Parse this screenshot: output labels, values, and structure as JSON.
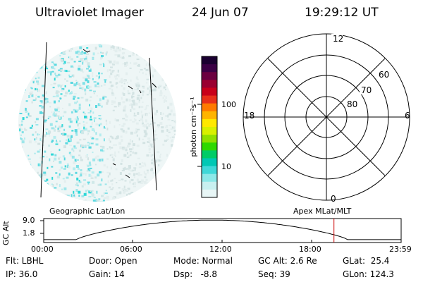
{
  "header": {
    "instrument": "Ultraviolet Imager",
    "date": "24 Jun 07",
    "time": "19:29:12 UT"
  },
  "colorbar": {
    "unit_label": "photon cm⁻²s⁻¹",
    "tick_labels": [
      "100",
      "10"
    ],
    "colors": [
      "#1a0030",
      "#3b0045",
      "#6b0040",
      "#9a0030",
      "#c8001a",
      "#e8301a",
      "#ff7a00",
      "#ffb400",
      "#ffe800",
      "#d8f000",
      "#90e000",
      "#2ed800",
      "#00cc66",
      "#00c8b4",
      "#3fd8d8",
      "#8ce8e8",
      "#c8f0f0",
      "#e8f6f6"
    ]
  },
  "polar": {
    "mlt_labels": {
      "top": "12",
      "left": "18",
      "right": "6",
      "bottom": "0"
    },
    "lat_labels": [
      "60",
      "70",
      "80"
    ]
  },
  "geo_label": "Geographic Lat/Lon",
  "apex_label": "Apex MLat/MLT",
  "altitude_plot": {
    "ylabel": "GC Alt",
    "y_ticks": [
      "9.0",
      "1.8"
    ],
    "x_ticks": [
      "00:00",
      "06:00",
      "12:00",
      "18:00",
      "23:59"
    ],
    "current_marker_hour": 19.49,
    "marker_color": "#cc0000"
  },
  "info": {
    "flt": "Flt: LBHL",
    "ip": "IP: 36.0",
    "door": "Door: Open",
    "gain": "Gain: 14",
    "mode": "Mode: Normal",
    "dsp": "Dsp:   -8.8",
    "gcalt": "GC Alt: 2.6 Re",
    "seq": "Seq: 39",
    "glat": "GLat:  25.4",
    "glon": "GLon: 124.3"
  }
}
